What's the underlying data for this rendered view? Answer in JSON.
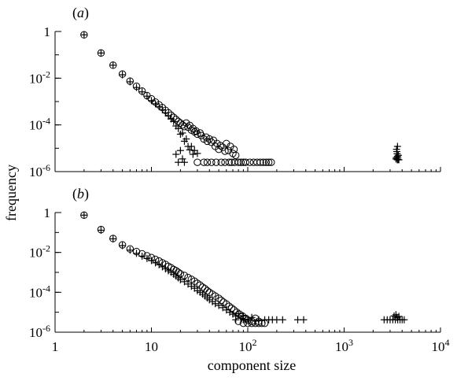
{
  "chart_data": [
    {
      "type": "scatter",
      "panel_label": "(a)",
      "x_scale": "log",
      "y_scale": "log",
      "xlim": [
        1,
        10000
      ],
      "ylim": [
        1e-06,
        1
      ],
      "y_ticks": [
        "1",
        "10^-2",
        "10^-4",
        "10^-6"
      ],
      "x_ticks": [],
      "xlabel": "",
      "ylabel": "frequency",
      "grid": false,
      "series": [
        {
          "marker": "circle",
          "points": [
            [
              2,
              0.72
            ],
            [
              3,
              0.12
            ],
            [
              4,
              0.036
            ],
            [
              5,
              0.015
            ],
            [
              6,
              0.0075
            ],
            [
              7,
              0.0045
            ],
            [
              8,
              0.0028
            ],
            [
              9,
              0.0018
            ],
            [
              10,
              0.0013
            ],
            [
              11,
              0.00095
            ],
            [
              12,
              0.00072
            ],
            [
              13,
              0.00055
            ],
            [
              14,
              0.00042
            ],
            [
              15,
              0.00033
            ],
            [
              16,
              0.00026
            ],
            [
              17,
              0.00021
            ],
            [
              18,
              0.00017
            ],
            [
              19,
              0.00014
            ],
            [
              20,
              0.00012
            ],
            [
              21,
              0.0001
            ],
            [
              22,
              8.5e-05
            ],
            [
              23,
              0.00012
            ],
            [
              24,
              8e-05
            ],
            [
              25,
              9.5e-05
            ],
            [
              26,
              6e-05
            ],
            [
              27,
              7e-05
            ],
            [
              28,
              5e-05
            ],
            [
              29,
              5.5e-05
            ],
            [
              30,
              4e-05
            ],
            [
              32,
              4.5e-05
            ],
            [
              33,
              3.5e-05
            ],
            [
              35,
              2.5e-05
            ],
            [
              37,
              3e-05
            ],
            [
              38,
              2e-05
            ],
            [
              40,
              2.5e-05
            ],
            [
              42,
              1.8e-05
            ],
            [
              44,
              2.2e-05
            ],
            [
              46,
              1.2e-05
            ],
            [
              48,
              1.6e-05
            ],
            [
              50,
              9e-06
            ],
            [
              52,
              1.3e-05
            ],
            [
              55,
              1.1e-05
            ],
            [
              58,
              7.5e-06
            ],
            [
              60,
              1.6e-05
            ],
            [
              63,
              8e-06
            ],
            [
              66,
              1.2e-05
            ],
            [
              70,
              6e-06
            ],
            [
              72,
              9e-06
            ],
            [
              75,
              5e-06
            ],
            [
              30,
              2.5e-06
            ],
            [
              35,
              2.5e-06
            ],
            [
              38,
              2.5e-06
            ],
            [
              42,
              2.5e-06
            ],
            [
              47,
              2.5e-06
            ],
            [
              53,
              2.5e-06
            ],
            [
              58,
              2.5e-06
            ],
            [
              64,
              2.5e-06
            ],
            [
              68,
              2.5e-06
            ],
            [
              73,
              2.5e-06
            ],
            [
              80,
              2.5e-06
            ],
            [
              85,
              2.5e-06
            ],
            [
              90,
              2.5e-06
            ],
            [
              95,
              2.5e-06
            ],
            [
              105,
              2.5e-06
            ],
            [
              115,
              2.5e-06
            ],
            [
              125,
              2.5e-06
            ],
            [
              135,
              2.5e-06
            ],
            [
              145,
              2.5e-06
            ],
            [
              155,
              2.5e-06
            ],
            [
              165,
              2.5e-06
            ],
            [
              175,
              2.5e-06
            ]
          ]
        },
        {
          "marker": "plus",
          "points": [
            [
              2,
              0.72
            ],
            [
              3,
              0.12
            ],
            [
              4,
              0.036
            ],
            [
              5,
              0.014
            ],
            [
              6,
              0.007
            ],
            [
              7,
              0.004
            ],
            [
              8,
              0.0026
            ],
            [
              9,
              0.0017
            ],
            [
              10,
              0.0011
            ],
            [
              11,
              0.0008
            ],
            [
              12,
              0.0006
            ],
            [
              13,
              0.00045
            ],
            [
              14,
              0.00033
            ],
            [
              15,
              0.00024
            ],
            [
              16,
              0.00018
            ],
            [
              17,
              0.00014
            ],
            [
              18,
              9e-05
            ],
            [
              19,
              7e-05
            ],
            [
              20,
              4e-05
            ],
            [
              21,
              4.5e-05
            ],
            [
              22,
              2e-05
            ],
            [
              23,
              2.5e-05
            ],
            [
              24,
              1.2e-05
            ],
            [
              25,
              8.5e-06
            ],
            [
              26,
              1.2e-05
            ],
            [
              27,
              5.5e-06
            ],
            [
              28,
              8e-06
            ],
            [
              30,
              6e-06
            ],
            [
              18,
              5.5e-06
            ],
            [
              19,
              2.5e-06
            ],
            [
              20,
              8e-06
            ],
            [
              21,
              3.5e-06
            ],
            [
              22,
              2.5e-06
            ],
            [
              3500,
              9e-06
            ],
            [
              3520,
              7.2e-06
            ],
            [
              3550,
              5.8e-06
            ],
            [
              3580,
              4.5e-06
            ],
            [
              3600,
              3.8e-06
            ],
            [
              3620,
              3.3e-06
            ],
            [
              3650,
              5e-06
            ],
            [
              3480,
              4e-06
            ],
            [
              3450,
              3.5e-06
            ],
            [
              3700,
              3.2e-06
            ],
            [
              3560,
              3.2e-06
            ],
            [
              3580,
              1.2e-05
            ]
          ]
        }
      ]
    },
    {
      "type": "scatter",
      "panel_label": "(b)",
      "x_scale": "log",
      "y_scale": "log",
      "xlim": [
        1,
        10000
      ],
      "ylim": [
        1e-06,
        1
      ],
      "x_ticks": [
        "1",
        "10",
        "10^2",
        "10^3",
        "10^4"
      ],
      "y_ticks": [
        "1",
        "10^-2",
        "10^-4",
        "10^-6"
      ],
      "xlabel": "component size",
      "ylabel": "frequency",
      "grid": false,
      "series": [
        {
          "marker": "circle",
          "points": [
            [
              2,
              0.74
            ],
            [
              3,
              0.14
            ],
            [
              4,
              0.05
            ],
            [
              5,
              0.024
            ],
            [
              6,
              0.015
            ],
            [
              7,
              0.011
            ],
            [
              8,
              0.0085
            ],
            [
              9,
              0.0068
            ],
            [
              10,
              0.0055
            ],
            [
              11,
              0.0045
            ],
            [
              12,
              0.0037
            ],
            [
              13,
              0.003
            ],
            [
              14,
              0.0025
            ],
            [
              15,
              0.002
            ],
            [
              16,
              0.0017
            ],
            [
              17,
              0.0014
            ],
            [
              18,
              0.0012
            ],
            [
              19,
              0.001
            ],
            [
              20,
              0.00085
            ],
            [
              22,
              0.0007
            ],
            [
              24,
              0.00055
            ],
            [
              26,
              0.00045
            ],
            [
              28,
              0.00036
            ],
            [
              30,
              0.00028
            ],
            [
              32,
              0.00023
            ],
            [
              34,
              0.00018
            ],
            [
              36,
              0.00015
            ],
            [
              38,
              0.00012
            ],
            [
              40,
              0.0001
            ],
            [
              43,
              8e-05
            ],
            [
              46,
              6.5e-05
            ],
            [
              50,
              5e-05
            ],
            [
              53,
              4e-05
            ],
            [
              56,
              3.2e-05
            ],
            [
              60,
              2.6e-05
            ],
            [
              64,
              2e-05
            ],
            [
              68,
              1.6e-05
            ],
            [
              72,
              1.3e-05
            ],
            [
              77,
              1e-05
            ],
            [
              82,
              8e-06
            ],
            [
              88,
              6.5e-06
            ],
            [
              95,
              5e-06
            ],
            [
              100,
              4e-06
            ],
            [
              110,
              3.5e-06
            ],
            [
              120,
              5e-06
            ],
            [
              130,
              3.5e-06
            ],
            [
              80,
              3.5e-06
            ],
            [
              90,
              2.8e-06
            ],
            [
              100,
              2.8e-06
            ],
            [
              110,
              2.8e-06
            ],
            [
              120,
              2.8e-06
            ],
            [
              130,
              2.8e-06
            ],
            [
              140,
              2.8e-06
            ],
            [
              150,
              2.8e-06
            ]
          ]
        },
        {
          "marker": "plus",
          "points": [
            [
              2,
              0.74
            ],
            [
              3,
              0.13
            ],
            [
              4,
              0.048
            ],
            [
              5,
              0.022
            ],
            [
              6,
              0.013
            ],
            [
              7,
              0.009
            ],
            [
              8,
              0.0065
            ],
            [
              9,
              0.005
            ],
            [
              10,
              0.0039
            ],
            [
              11,
              0.003
            ],
            [
              12,
              0.0024
            ],
            [
              13,
              0.0019
            ],
            [
              14,
              0.0015
            ],
            [
              15,
              0.0012
            ],
            [
              16,
              0.001
            ],
            [
              17,
              0.0008
            ],
            [
              18,
              0.00065
            ],
            [
              19,
              0.00053
            ],
            [
              20,
              0.00043
            ],
            [
              22,
              0.00034
            ],
            [
              24,
              0.00026
            ],
            [
              26,
              0.0002
            ],
            [
              28,
              0.00016
            ],
            [
              30,
              0.00012
            ],
            [
              32,
              0.0001
            ],
            [
              34,
              8e-05
            ],
            [
              36,
              6.5e-05
            ],
            [
              38,
              5.2e-05
            ],
            [
              40,
              4.2e-05
            ],
            [
              43,
              3.4e-05
            ],
            [
              46,
              2.7e-05
            ],
            [
              50,
              2.2e-05
            ],
            [
              55,
              1.7e-05
            ],
            [
              60,
              1.3e-05
            ],
            [
              65,
              1e-05
            ],
            [
              70,
              8e-06
            ],
            [
              75,
              6.5e-06
            ],
            [
              80,
              8.5e-06
            ],
            [
              85,
              5e-06
            ],
            [
              90,
              6.5e-06
            ],
            [
              100,
              4.5e-06
            ],
            [
              110,
              5.5e-06
            ],
            [
              75,
              4.2e-06
            ],
            [
              90,
              4.2e-06
            ],
            [
              130,
              4.2e-06
            ],
            [
              150,
              4.2e-06
            ],
            [
              165,
              4.2e-06
            ],
            [
              180,
              4.2e-06
            ],
            [
              200,
              4.2e-06
            ],
            [
              230,
              4.2e-06
            ],
            [
              330,
              4.2e-06
            ],
            [
              380,
              4.2e-06
            ],
            [
              2600,
              4.2e-06
            ],
            [
              2800,
              4.2e-06
            ],
            [
              3000,
              4.2e-06
            ],
            [
              3200,
              4.2e-06
            ],
            [
              3400,
              4.2e-06
            ],
            [
              3600,
              4.2e-06
            ],
            [
              3800,
              4.2e-06
            ],
            [
              4000,
              4.2e-06
            ],
            [
              4200,
              4.2e-06
            ],
            [
              3300,
              6.5e-06
            ],
            [
              3450,
              7.5e-06
            ],
            [
              3550,
              5.5e-06
            ],
            [
              3700,
              6.2e-06
            ]
          ]
        }
      ]
    }
  ]
}
